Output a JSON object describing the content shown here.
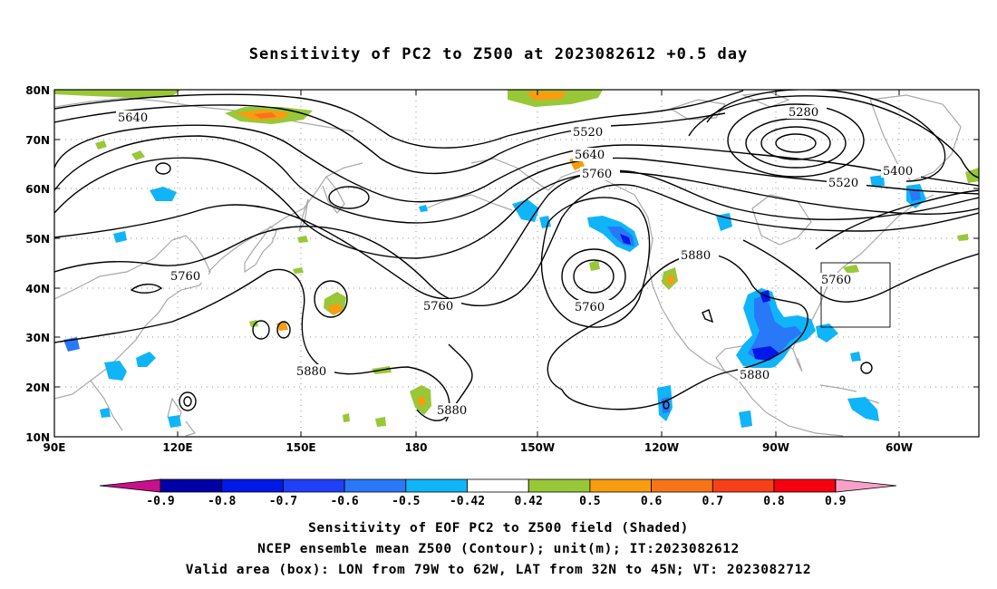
{
  "title": "Sensitivity of PC2 to Z500 at 2023082612 +0.5 day",
  "lat_labels": [
    "80N",
    "70N",
    "60N",
    "50N",
    "40N",
    "30N",
    "20N",
    "10N"
  ],
  "lon_labels": [
    "90E",
    "120E",
    "150E",
    "180",
    "150W",
    "120W",
    "90W",
    "60W"
  ],
  "contour_labels": [
    "5640",
    "5520",
    "5640",
    "5760",
    "5280",
    "5400",
    "5520",
    "5760",
    "5760",
    "5760",
    "5880",
    "5760",
    "5880",
    "5880",
    "5880"
  ],
  "colorbar": {
    "labels": [
      "-0.9",
      "-0.8",
      "-0.7",
      "-0.6",
      "-0.5",
      "-0.42",
      "0.42",
      "0.5",
      "0.6",
      "0.7",
      "0.8",
      "0.9"
    ],
    "colors": [
      "#0000a8",
      "#0018e8",
      "#2040f8",
      "#2878f8",
      "#10b4f8",
      "#ffffff",
      "#98c838",
      "#f89c10",
      "#f87418",
      "#f84018",
      "#f80010"
    ],
    "under_color": "#c8108c",
    "over_color": "#f8a0c8"
  },
  "captions": [
    "Sensitivity of EOF PC2 to Z500 field (Shaded)",
    "NCEP ensemble mean Z500 (Contour); unit(m); IT:2023082612",
    "Valid area (box): LON from 79W to 62W, LAT from 32N to 45N; VT: 2023082712"
  ],
  "valid_box": {
    "lon_min": -79,
    "lon_max": -62,
    "lat_min": 32,
    "lat_max": 45
  }
}
